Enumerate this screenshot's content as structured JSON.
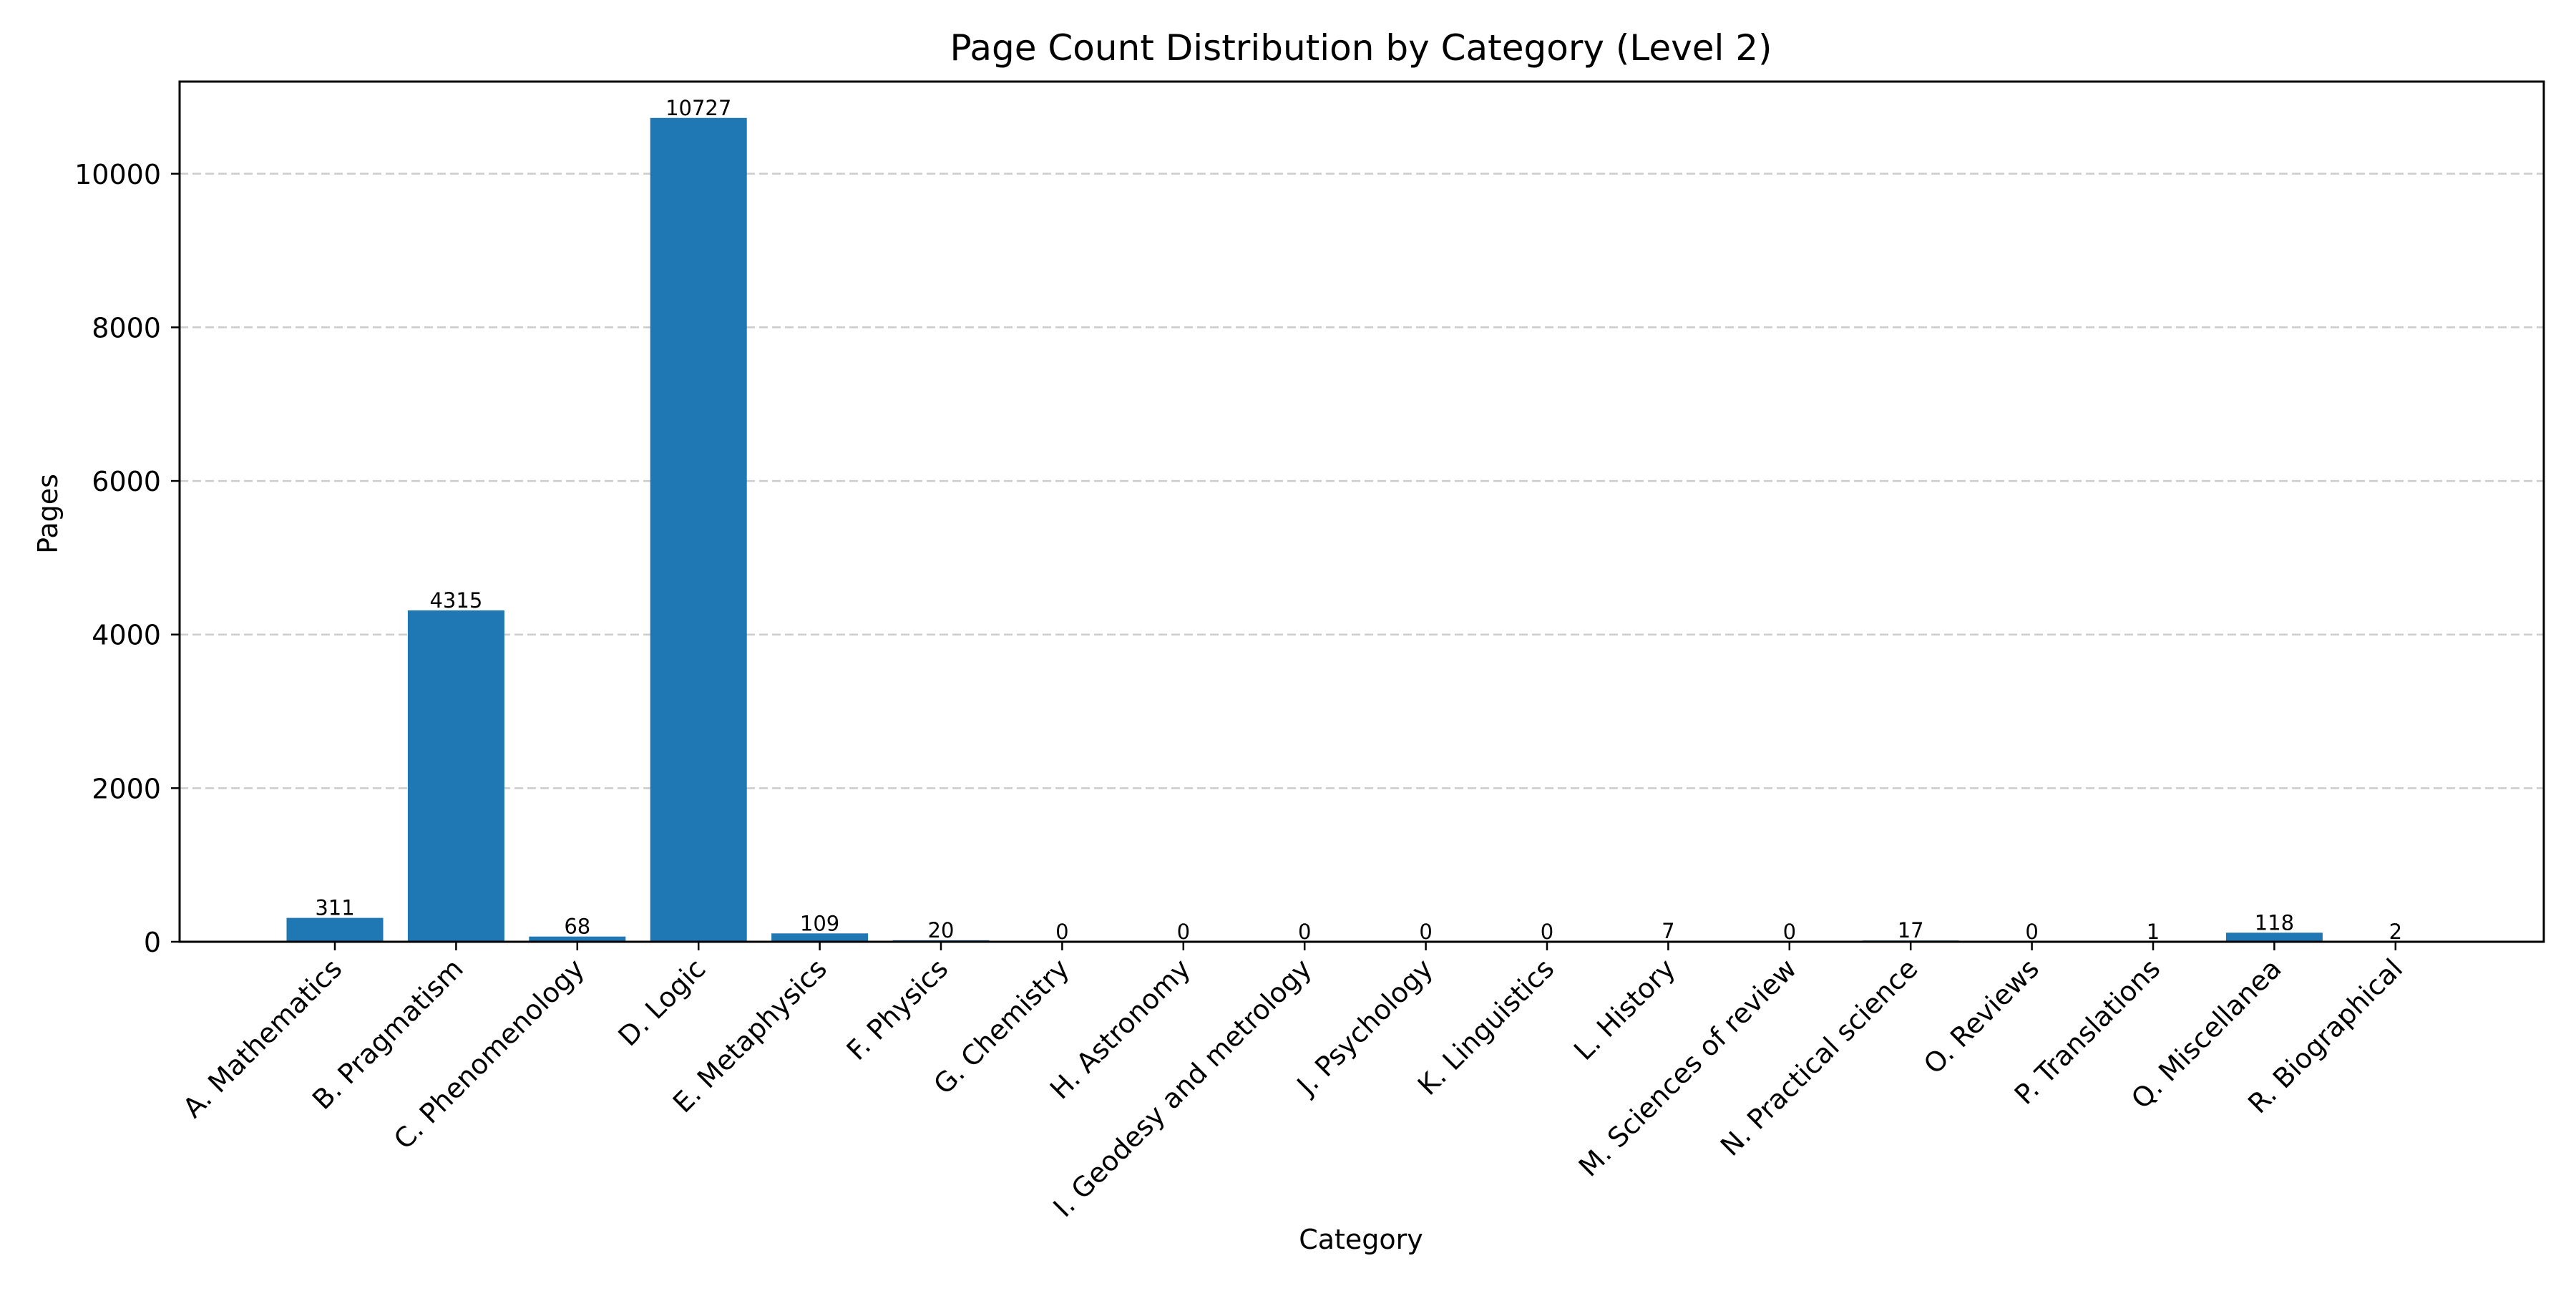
{
  "chart_data": {
    "type": "bar",
    "title": "Page Count Distribution by Category (Level 2)",
    "xlabel": "Category",
    "ylabel": "Pages",
    "ylim": [
      0,
      11200
    ],
    "yticks": [
      0,
      2000,
      4000,
      6000,
      8000,
      10000
    ],
    "grid": "horizontal dashed",
    "legend": "none",
    "bar_color": "#1f77b4",
    "categories": [
      "A. Mathematics",
      "B. Pragmatism",
      "C. Phenomenology",
      "D. Logic",
      "E. Metaphysics",
      "F. Physics",
      "G. Chemistry",
      "H. Astronomy",
      "I. Geodesy and metrology",
      "J. Psychology",
      "K. Linguistics",
      "L. History",
      "M. Sciences of review",
      "N. Practical science",
      "O. Reviews",
      "P. Translations",
      "Q. Miscellanea",
      "R. Biographical"
    ],
    "values": [
      311,
      4315,
      68,
      10727,
      109,
      20,
      0,
      0,
      0,
      0,
      0,
      7,
      0,
      17,
      0,
      1,
      118,
      2
    ]
  }
}
